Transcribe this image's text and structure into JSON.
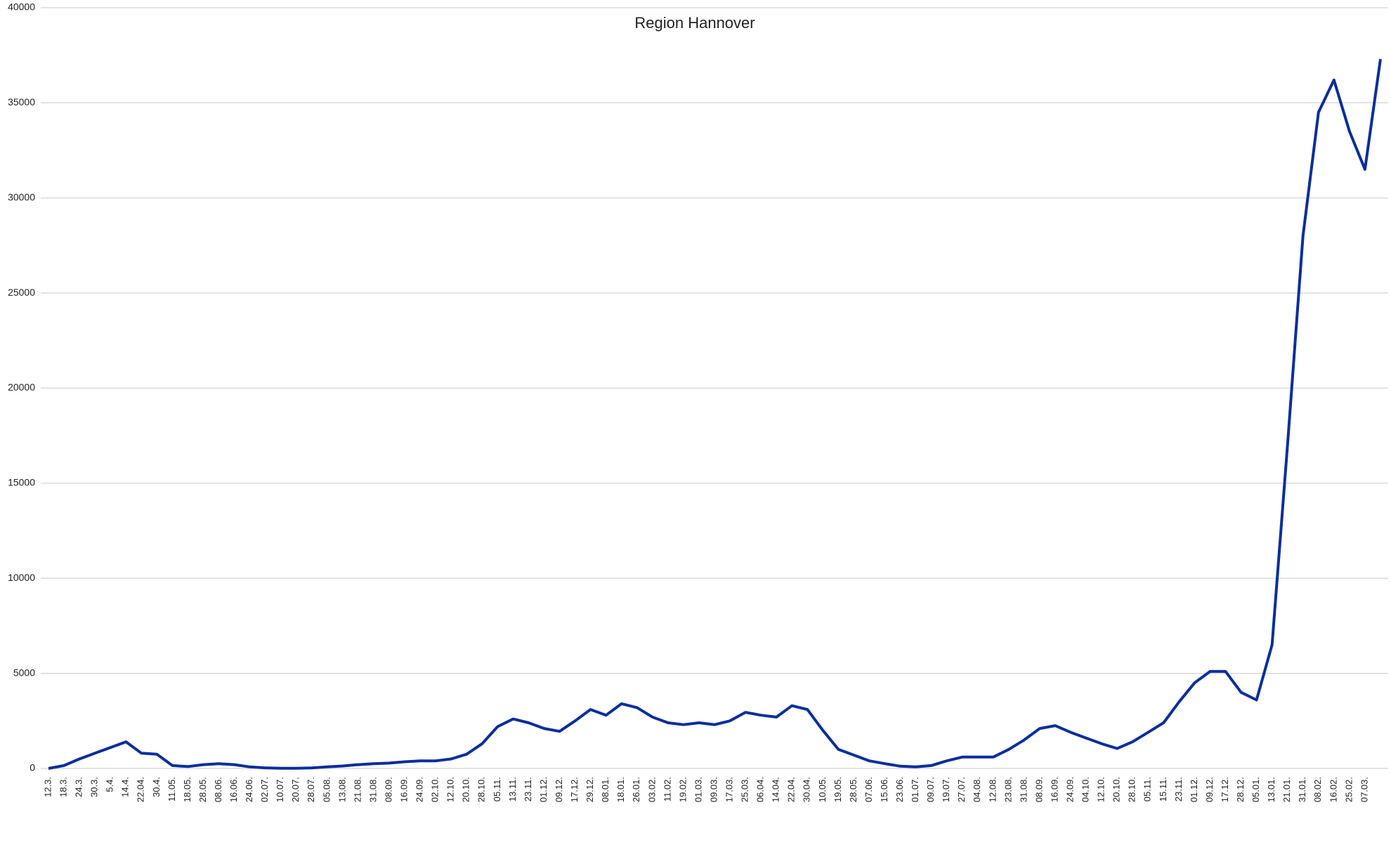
{
  "chart_data": {
    "type": "line",
    "title": "Region Hannover",
    "categories": [
      "12.3.",
      "18.3.",
      "24.3.",
      "30.3.",
      "5.4.",
      "14.4.",
      "22.04.",
      "30.4.",
      "11.05.",
      "18.05.",
      "28.05.",
      "08.06.",
      "16.06.",
      "24.06.",
      "02.07.",
      "10.07.",
      "20.07.",
      "28.07.",
      "05.08.",
      "13.08.",
      "21.08.",
      "31.08.",
      "08.09.",
      "16.09.",
      "24.09.",
      "02.10.",
      "12.10.",
      "20.10.",
      "28.10.",
      "05.11.",
      "13.11.",
      "23.11.",
      "01.12.",
      "09.12.",
      "17.12.",
      "29.12.",
      "08.01.",
      "18.01.",
      "26.01.",
      "03.02.",
      "11.02.",
      "19.02.",
      "01.03.",
      "09.03.",
      "17.03.",
      "25.03.",
      "06.04.",
      "14.04.",
      "22.04.",
      "30.04.",
      "10.05.",
      "19.05.",
      "28.05.",
      "07.06.",
      "15.06.",
      "23.06.",
      "01.07.",
      "09.07.",
      "19.07.",
      "27.07.",
      "04.08.",
      "12.08.",
      "23.08.",
      "31.08.",
      "08.09.",
      "16.09.",
      "24.09.",
      "04.10.",
      "12.10.",
      "20.10.",
      "28.10.",
      "05.11.",
      "15.11.",
      "23.11.",
      "01.12.",
      "09.12.",
      "17.12.",
      "28.12.",
      "05.01.",
      "13.01.",
      "21.01.",
      "31.01.",
      "08.02.",
      "16.02.",
      "25.02.",
      "07.03.",
      null
    ],
    "series": [
      {
        "name": "Region Hannover",
        "color": "#0b2e9c",
        "values": [
          0,
          150,
          500,
          800,
          1100,
          1400,
          800,
          750,
          150,
          100,
          200,
          250,
          200,
          80,
          30,
          10,
          10,
          30,
          80,
          130,
          200,
          250,
          280,
          350,
          400,
          400,
          500,
          750,
          1300,
          2200,
          2600,
          2400,
          2100,
          1950,
          2500,
          3100,
          2800,
          3400,
          3200,
          2700,
          2400,
          2300,
          2400,
          2300,
          2500,
          2950,
          2800,
          2700,
          3300,
          3100,
          2000,
          1000,
          700,
          400,
          250,
          120,
          80,
          150,
          400,
          600,
          600,
          600,
          1000,
          1500,
          2100,
          2250,
          1900,
          1600,
          1300,
          1050,
          1400,
          1900,
          2400,
          3500,
          4500,
          5100,
          5100,
          4000,
          3600,
          6500,
          17000,
          28000,
          34500,
          36200,
          33500,
          31500,
          37300
        ]
      }
    ],
    "ylim": [
      0,
      40000
    ],
    "yticks": [
      0,
      5000,
      10000,
      15000,
      20000,
      25000,
      30000,
      35000,
      40000
    ],
    "grid": true
  }
}
